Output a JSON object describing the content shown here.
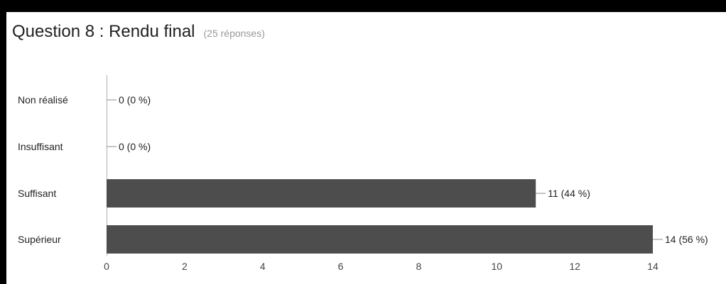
{
  "page": {
    "title": "Question 8 : Rendu final",
    "response_count": "(25 réponses)"
  },
  "chart_data": {
    "type": "bar",
    "orientation": "horizontal",
    "categories": [
      "Non réalisé",
      "Insuffisant",
      "Suffisant",
      "Supérieur"
    ],
    "values": [
      0,
      0,
      11,
      14
    ],
    "value_labels": [
      "0 (0 %)",
      "0 (0 %)",
      "11 (44 %)",
      "14 (56 %)"
    ],
    "xticks": [
      0,
      2,
      4,
      6,
      8,
      10,
      12,
      14
    ],
    "xlim": [
      0,
      14
    ],
    "grid": false,
    "legend": "none",
    "bar_color": "#4d4d4d"
  }
}
